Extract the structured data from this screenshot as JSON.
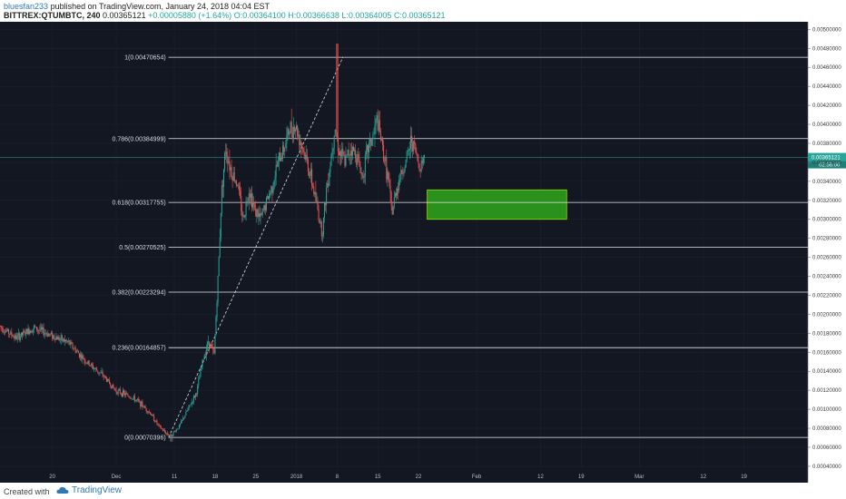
{
  "header": {
    "author": "bluesfan233",
    "published": "published on TradingView.com, January 24, 2018 04:04 EST",
    "symbol": "BITTREX:QTUMBTC, 240",
    "last": "0.00365121",
    "change": "+0.00005880 (+1.64%)",
    "open": "O:0.00364100",
    "high": "H:0.00366638",
    "low": "L:0.00364005",
    "close": "C:0.00365121"
  },
  "footer": {
    "created": "Created with",
    "brand": "TradingView"
  },
  "colors": {
    "background": "#131722",
    "bull": "#26a69a",
    "bear": "#ef5350",
    "fib_line": "#e8e8e8",
    "zone": "#2e9e1c",
    "price_tag": "#26a69a"
  },
  "chart_data": {
    "type": "candlestick",
    "y_ticks": [
      "0.00500000",
      "0.00480000",
      "0.00460000",
      "0.00440000",
      "0.00420000",
      "0.00400000",
      "0.00380000",
      "0.00360000",
      "0.00340000",
      "0.00320000",
      "0.00300000",
      "0.00280000",
      "0.00260000",
      "0.00240000",
      "0.00220000",
      "0.00200000",
      "0.00180000",
      "0.00160000",
      "0.00140000",
      "0.00120000",
      "0.00100000",
      "0.00080000",
      "0.00060000",
      "0.00040000"
    ],
    "ylim": [
      0.00038,
      0.00508
    ],
    "x_ticks": [
      "20",
      "Dec",
      "11",
      "18",
      "25",
      "2018",
      "8",
      "15",
      "22",
      "Feb",
      "12",
      "19",
      "Mar",
      "12",
      "19"
    ],
    "x_tick_days": [
      -11,
      0,
      10,
      17,
      24,
      31,
      38,
      45,
      52,
      62,
      73,
      80,
      90,
      101,
      108
    ],
    "xlim": [
      -20,
      119
    ],
    "current_price": "0.00365121",
    "current_time_tag": "02:56:00",
    "fib_levels": [
      {
        "label": "1(0.00470654)",
        "value": 0.00470654
      },
      {
        "label": "0.786(0.00384999)",
        "value": 0.00384999
      },
      {
        "label": "0.618(0.00317755)",
        "value": 0.00317755
      },
      {
        "label": "0.5(0.00270525)",
        "value": 0.00270525
      },
      {
        "label": "0.382(0.00223294)",
        "value": 0.00223294
      },
      {
        "label": "0.236(0.00164857)",
        "value": 0.00164857
      },
      {
        "label": "0(0.00070396)",
        "value": 0.00070396
      }
    ],
    "target_zone": {
      "day_start": 53.5,
      "day_end": 77.5,
      "price_low": 0.003,
      "price_high": 0.00331
    },
    "trend_line": {
      "day_start": 9,
      "price_start": 0.00070396,
      "day_end": 39,
      "price_end": 0.00470654
    },
    "price_path": [
      [
        -20,
        0.00188
      ],
      [
        -17,
        0.00175
      ],
      [
        -14,
        0.00186
      ],
      [
        -11,
        0.00178
      ],
      [
        -8,
        0.0017
      ],
      [
        -5,
        0.0015
      ],
      [
        -2,
        0.00135
      ],
      [
        0,
        0.0012
      ],
      [
        2,
        0.00115
      ],
      [
        4,
        0.00108
      ],
      [
        6,
        0.00096
      ],
      [
        7.5,
        0.00082
      ],
      [
        8.5,
        0.00076
      ],
      [
        9.5,
        0.00072
      ],
      [
        11,
        0.00082
      ],
      [
        12.5,
        0.001
      ],
      [
        14,
        0.00118
      ],
      [
        15,
        0.0015
      ],
      [
        16,
        0.00172
      ],
      [
        17,
        0.00158
      ],
      [
        17.7,
        0.0024
      ],
      [
        18.3,
        0.0033
      ],
      [
        19,
        0.00375
      ],
      [
        20,
        0.0035
      ],
      [
        21,
        0.00338
      ],
      [
        22,
        0.003
      ],
      [
        23,
        0.00332
      ],
      [
        24,
        0.0031
      ],
      [
        25,
        0.003
      ],
      [
        26,
        0.00318
      ],
      [
        27,
        0.00335
      ],
      [
        28,
        0.0036
      ],
      [
        29,
        0.00375
      ],
      [
        30,
        0.00395
      ],
      [
        31,
        0.00398
      ],
      [
        32,
        0.0038
      ],
      [
        33,
        0.0036
      ],
      [
        34,
        0.00335
      ],
      [
        35,
        0.00305
      ],
      [
        35.6,
        0.00285
      ],
      [
        36.3,
        0.0033
      ],
      [
        37,
        0.0036
      ],
      [
        37.8,
        0.004
      ],
      [
        38.5,
        0.00372
      ],
      [
        39.5,
        0.0036
      ],
      [
        40.5,
        0.00375
      ],
      [
        41.5,
        0.00368
      ],
      [
        42.5,
        0.00345
      ],
      [
        43.5,
        0.00375
      ],
      [
        44.5,
        0.0039
      ],
      [
        45,
        0.00405
      ],
      [
        46,
        0.00375
      ],
      [
        47,
        0.0034
      ],
      [
        47.6,
        0.00305
      ],
      [
        48.3,
        0.0033
      ],
      [
        49,
        0.00345
      ],
      [
        50,
        0.0036
      ],
      [
        51,
        0.00385
      ],
      [
        51.7,
        0.0037
      ],
      [
        52.3,
        0.00355
      ],
      [
        53,
        0.00365121
      ]
    ]
  }
}
